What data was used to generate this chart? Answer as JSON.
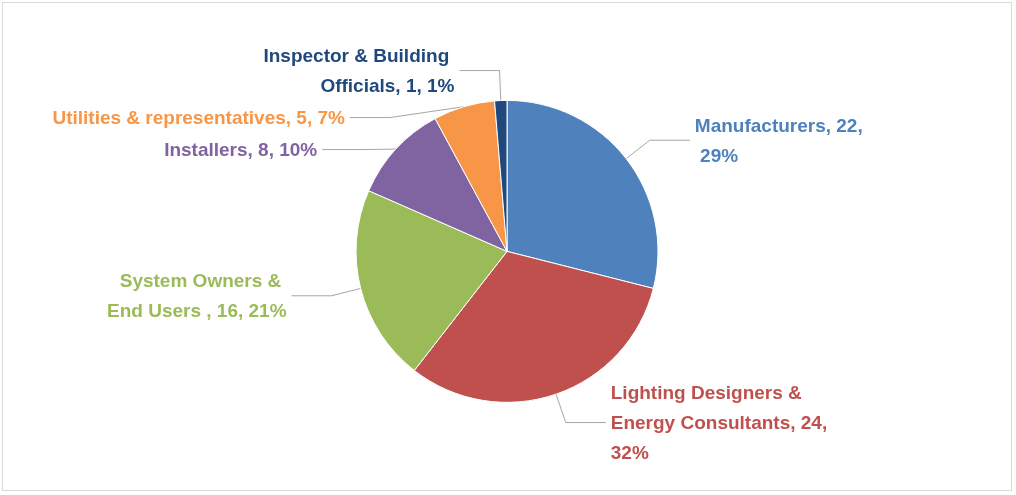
{
  "chart_data": {
    "type": "pie",
    "categories": [
      "Manufacturers",
      "Lighting Designers & Energy Consultants",
      "System Owners & End Users ",
      "Installers",
      "Utilities & representatives",
      "Inspector & Building Officials"
    ],
    "values": [
      22,
      24,
      16,
      8,
      5,
      1
    ],
    "value_labels": [
      "22, 29%",
      "24, 32%",
      "16, 21%",
      "8, 10%",
      "5, 7%",
      "1, 1%"
    ],
    "colors": [
      "#4f81bd",
      "#c0504d",
      "#9bbb59",
      "#8064a2",
      "#f79646",
      "#1f497d"
    ],
    "legend": false
  }
}
